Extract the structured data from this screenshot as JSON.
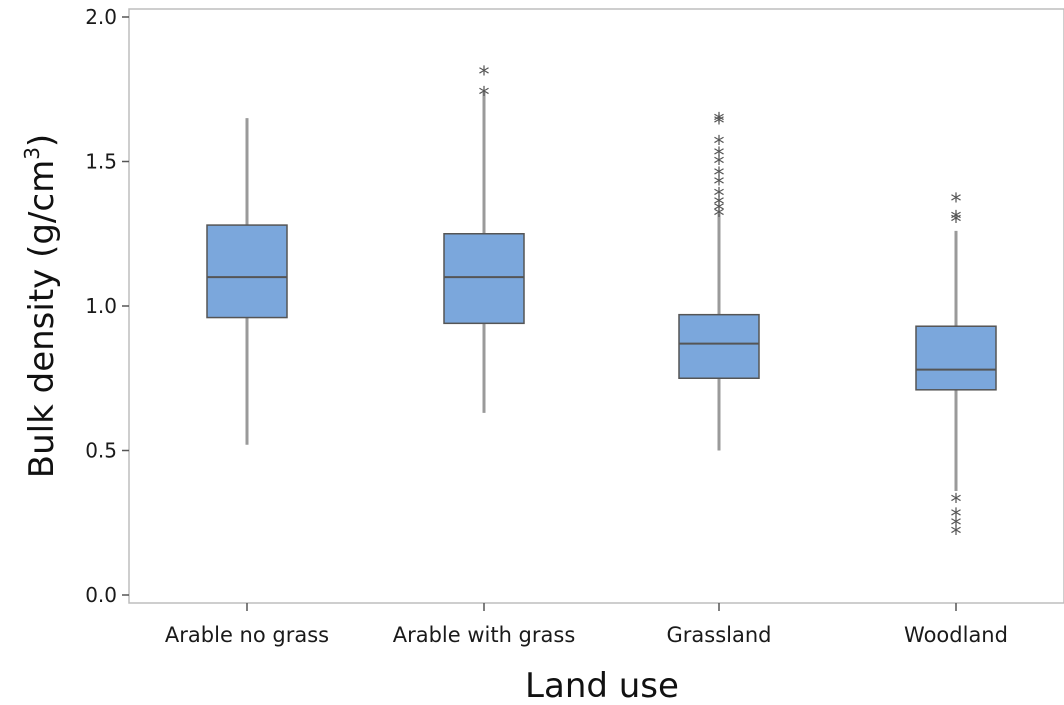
{
  "chart_data": {
    "type": "box",
    "title": "",
    "xlabel": "Land use",
    "ylabel": "Bulk density (g/cm",
    "ylabel_sup": "3",
    "ylabel_close": ")",
    "ylim": [
      0,
      2.0
    ],
    "yticks": [
      0.0,
      0.5,
      1.0,
      1.5,
      2.0
    ],
    "ytick_labels": [
      "0.0",
      "0.5",
      "1.0",
      "1.5",
      "2.0"
    ],
    "categories": [
      "Arable no grass",
      "Arable with grass",
      "Grassland",
      "Woodland"
    ],
    "boxes": [
      {
        "category": "Arable no grass",
        "whisker_low": 0.52,
        "q1": 0.96,
        "median": 1.1,
        "q3": 1.28,
        "whisker_high": 1.65,
        "outliers": []
      },
      {
        "category": "Arable with grass",
        "whisker_low": 0.63,
        "q1": 0.94,
        "median": 1.1,
        "q3": 1.25,
        "whisker_high": 1.74,
        "outliers": [
          1.75,
          1.82
        ]
      },
      {
        "category": "Grassland",
        "whisker_low": 0.5,
        "q1": 0.75,
        "median": 0.87,
        "q3": 0.97,
        "whisker_high": 1.32,
        "outliers": [
          1.33,
          1.35,
          1.37,
          1.4,
          1.44,
          1.47,
          1.51,
          1.54,
          1.58,
          1.65,
          1.66
        ]
      },
      {
        "category": "Woodland",
        "whisker_low": 0.36,
        "q1": 0.71,
        "median": 0.78,
        "q3": 0.93,
        "whisker_high": 1.26,
        "outliers": [
          0.23,
          0.26,
          0.29,
          0.34,
          1.31,
          1.32,
          1.38
        ]
      }
    ],
    "box_fill": "#7BA7DC",
    "box_stroke": "#555555",
    "whisker_color": "#9a9a9a",
    "outlier_marker": "*",
    "grid": false,
    "legend": "none"
  }
}
